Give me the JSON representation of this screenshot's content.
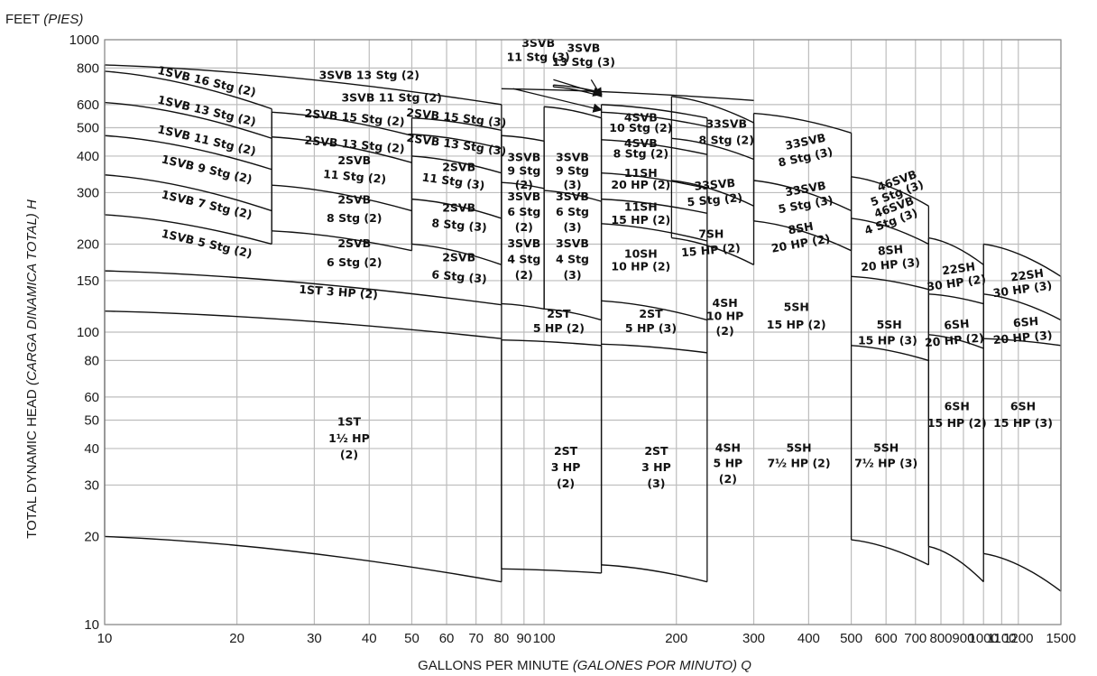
{
  "chart_data": {
    "type": "performance-curve-coverage",
    "y_unit_label": "FEET",
    "y_unit_label_es": "(PIES)",
    "xlabel": "GALLONS PER MINUTE",
    "xlabel_es": "(GALONES POR MINUTO) Q",
    "ylabel": "TOTAL DYNAMIC HEAD",
    "ylabel_es": "(CARGA DINAMICA TOTAL) H",
    "x_scale": "log",
    "y_scale": "log",
    "xlim": [
      10,
      1500
    ],
    "ylim": [
      10,
      1000
    ],
    "x_ticks": [
      10,
      20,
      30,
      40,
      50,
      60,
      70,
      80,
      90,
      100,
      200,
      300,
      400,
      500,
      600,
      700,
      800,
      900,
      1000,
      1100,
      1200,
      1500
    ],
    "x_tick_labels": [
      "10",
      "20",
      "30",
      "40",
      "50",
      "60",
      "70",
      "80",
      "90",
      "100",
      "200",
      "300",
      "400",
      "500",
      "600",
      "700",
      "800",
      "900",
      "1000",
      "1100",
      "1200",
      "1500"
    ],
    "y_ticks": [
      10,
      20,
      30,
      40,
      50,
      60,
      80,
      100,
      150,
      200,
      300,
      400,
      500,
      600,
      800,
      1000
    ],
    "y_tick_labels": [
      "10",
      "20",
      "30",
      "40",
      "50",
      "60",
      "80",
      "100",
      "150",
      "200",
      "300",
      "400",
      "500",
      "600",
      "800",
      "1000"
    ],
    "grid": true,
    "columns": [
      {
        "x": [
          10,
          80
        ],
        "curves": [
          [
            20,
            14
          ],
          [
            118,
            95
          ],
          [
            162,
            124
          ],
          [
            820,
            600
          ]
        ]
      },
      {
        "x": [
          10,
          24
        ],
        "curves": [
          [
            252,
            200
          ],
          [
            345,
            260
          ],
          [
            470,
            360
          ],
          [
            610,
            460
          ],
          [
            780,
            580
          ]
        ]
      },
      {
        "x": [
          24,
          50
        ],
        "curves": [
          [
            222,
            190
          ],
          [
            318,
            260
          ],
          [
            465,
            380
          ],
          [
            565,
            470
          ]
        ]
      },
      {
        "x": [
          50,
          80
        ],
        "curves": [
          [
            200,
            170
          ],
          [
            285,
            245
          ],
          [
            400,
            350
          ],
          [
            475,
            425
          ],
          [
            540,
            490
          ]
        ]
      },
      {
        "x": [
          80,
          100
        ],
        "curves": [
          [
            125,
            120
          ],
          [
            325,
            310
          ],
          [
            470,
            450
          ]
        ]
      },
      {
        "x": [
          100,
          135
        ],
        "curves": [
          [
            120,
            110
          ],
          [
            305,
            280
          ],
          [
            590,
            540
          ]
        ]
      },
      {
        "x": [
          80,
          135
        ],
        "curves": [
          [
            94,
            90
          ],
          [
            15.5,
            15
          ]
        ]
      },
      {
        "x": [
          135,
          235
        ],
        "curves": [
          [
            128,
            110
          ],
          [
            91,
            85
          ],
          [
            16,
            14
          ],
          [
            235,
            205
          ],
          [
            285,
            255
          ],
          [
            350,
            310
          ],
          [
            455,
            405
          ],
          [
            565,
            505
          ],
          [
            600,
            540
          ]
        ]
      },
      {
        "x": [
          195,
          300
        ],
        "curves": [
          [
            210,
            170
          ],
          [
            330,
            270
          ],
          [
            460,
            390
          ],
          [
            640,
            520
          ]
        ]
      },
      {
        "x": [
          300,
          500
        ],
        "curves": [
          [
            240,
            190
          ],
          [
            330,
            260
          ],
          [
            560,
            480
          ]
        ]
      },
      {
        "x": [
          500,
          750
        ],
        "curves": [
          [
            340,
            270
          ],
          [
            245,
            200
          ],
          [
            155,
            140
          ],
          [
            90,
            80
          ],
          [
            19.5,
            16
          ]
        ]
      },
      {
        "x": [
          750,
          1000
        ],
        "curves": [
          [
            210,
            170
          ],
          [
            135,
            125
          ],
          [
            98,
            88
          ],
          [
            18.5,
            14
          ]
        ]
      },
      {
        "x": [
          1000,
          1500
        ],
        "curves": [
          [
            200,
            155
          ],
          [
            135,
            110
          ],
          [
            95,
            90
          ],
          [
            17.5,
            13
          ]
        ]
      },
      {
        "x": [
          105,
          135
        ],
        "curves": [
          [
            700,
            660
          ],
          [
            690,
            640
          ]
        ]
      },
      {
        "x": [
          80,
          300
        ],
        "curves": [
          [
            680,
            620
          ]
        ]
      }
    ],
    "annotations": [
      {
        "text": "1SVB 16 Stg (2)",
        "x": 17,
        "y": 700,
        "rot": 13
      },
      {
        "text": "1SVB 13 Stg (2)",
        "x": 17,
        "y": 555,
        "rot": 13
      },
      {
        "text": "1SVB 11 Stg (2)",
        "x": 17,
        "y": 440,
        "rot": 13
      },
      {
        "text": "1SVB 9 Stg (2)",
        "x": 17,
        "y": 350,
        "rot": 13
      },
      {
        "text": "1SVB 7 Stg (2)",
        "x": 17,
        "y": 265,
        "rot": 13
      },
      {
        "text": "1SVB 5 Stg (2)",
        "x": 17,
        "y": 195,
        "rot": 13
      },
      {
        "text": "3SVB 13 Stg (2)",
        "x": 40,
        "y": 735,
        "rot": 0
      },
      {
        "text": "3SVB 11 Stg (2)",
        "x": 45,
        "y": 615,
        "rot": 0
      },
      {
        "text": "2SVB 15 Stg (2)",
        "x": 37,
        "y": 525,
        "rot": 5
      },
      {
        "text": "2SVB 13 Stg (2)",
        "x": 37,
        "y": 425,
        "rot": 5
      },
      {
        "text": "2SVB",
        "x": 37,
        "y": 375,
        "rot": 0
      },
      {
        "text": "11 Stg (2)",
        "x": 37,
        "y": 330,
        "rot": 5
      },
      {
        "text": "2SVB",
        "x": 37,
        "y": 275,
        "rot": 0
      },
      {
        "text": "8 Stg (2)",
        "x": 37,
        "y": 238,
        "rot": 0
      },
      {
        "text": "2SVB",
        "x": 37,
        "y": 195,
        "rot": 0
      },
      {
        "text": "6 Stg (2)",
        "x": 37,
        "y": 168,
        "rot": 0
      },
      {
        "text": "2SVB 15 Stg (3)",
        "x": 63,
        "y": 525,
        "rot": 6
      },
      {
        "text": "2SVB 13 Stg (3)",
        "x": 63,
        "y": 425,
        "rot": 8
      },
      {
        "text": "2SVB",
        "x": 64,
        "y": 355,
        "rot": 0
      },
      {
        "text": "11 Stg (3)",
        "x": 62,
        "y": 318,
        "rot": 8
      },
      {
        "text": "2SVB",
        "x": 64,
        "y": 258,
        "rot": 0
      },
      {
        "text": "8 Stg (3)",
        "x": 64,
        "y": 225,
        "rot": 5
      },
      {
        "text": "2SVB",
        "x": 64,
        "y": 175,
        "rot": 0
      },
      {
        "text": "6 Stg (3)",
        "x": 64,
        "y": 150,
        "rot": 5
      },
      {
        "text": "1ST 3 HP (2)",
        "x": 34,
        "y": 133,
        "rot": 4
      },
      {
        "text": "1ST",
        "x": 36,
        "y": 48,
        "rot": 0
      },
      {
        "text": "1½ HP",
        "x": 36,
        "y": 42,
        "rot": 0
      },
      {
        "text": "(2)",
        "x": 36,
        "y": 37,
        "rot": 0
      },
      {
        "text": "3SVB",
        "x": 90,
        "y": 385,
        "rot": 0
      },
      {
        "text": "9 Stg",
        "x": 90,
        "y": 345,
        "rot": 0
      },
      {
        "text": "(2)",
        "x": 90,
        "y": 310,
        "rot": 0
      },
      {
        "text": "3SVB",
        "x": 90,
        "y": 282,
        "rot": 0
      },
      {
        "text": "6 Stg",
        "x": 90,
        "y": 250,
        "rot": 0
      },
      {
        "text": "(2)",
        "x": 90,
        "y": 222,
        "rot": 0
      },
      {
        "text": "3SVB",
        "x": 90,
        "y": 195,
        "rot": 0
      },
      {
        "text": "4 Stg",
        "x": 90,
        "y": 172,
        "rot": 0
      },
      {
        "text": "(2)",
        "x": 90,
        "y": 152,
        "rot": 0
      },
      {
        "text": "3SVB",
        "x": 116,
        "y": 385,
        "rot": 0
      },
      {
        "text": "9 Stg",
        "x": 116,
        "y": 345,
        "rot": 0
      },
      {
        "text": "(3)",
        "x": 116,
        "y": 310,
        "rot": 0
      },
      {
        "text": "3SVB",
        "x": 116,
        "y": 282,
        "rot": 0
      },
      {
        "text": "6 Stg",
        "x": 116,
        "y": 250,
        "rot": 0
      },
      {
        "text": "(3)",
        "x": 116,
        "y": 222,
        "rot": 0
      },
      {
        "text": "3SVB",
        "x": 116,
        "y": 195,
        "rot": 0
      },
      {
        "text": "4 Stg",
        "x": 116,
        "y": 172,
        "rot": 0
      },
      {
        "text": "(3)",
        "x": 116,
        "y": 152,
        "rot": 0
      },
      {
        "text": "3SVB",
        "x": 97,
        "y": 945,
        "rot": 0
      },
      {
        "text": "11 Stg (3)",
        "x": 97,
        "y": 845,
        "rot": 0
      },
      {
        "text": "3SVB",
        "x": 123,
        "y": 910,
        "rot": 0
      },
      {
        "text": "13 Stg (3)",
        "x": 123,
        "y": 815,
        "rot": 0
      },
      {
        "text": "2ST",
        "x": 108,
        "y": 112,
        "rot": 0
      },
      {
        "text": "5 HP (2)",
        "x": 108,
        "y": 100,
        "rot": 0
      },
      {
        "text": "2ST",
        "x": 112,
        "y": 38,
        "rot": 0
      },
      {
        "text": "3 HP",
        "x": 112,
        "y": 33.5,
        "rot": 0
      },
      {
        "text": "(2)",
        "x": 112,
        "y": 29.5,
        "rot": 0
      },
      {
        "text": "4SVB",
        "x": 166,
        "y": 525,
        "rot": 0
      },
      {
        "text": "10 Stg (2)",
        "x": 166,
        "y": 485,
        "rot": 0
      },
      {
        "text": "4SVB",
        "x": 166,
        "y": 430,
        "rot": 0
      },
      {
        "text": "8 Stg (2)",
        "x": 166,
        "y": 395,
        "rot": 0
      },
      {
        "text": "11SH",
        "x": 166,
        "y": 340,
        "rot": 0
      },
      {
        "text": "20 HP (2)",
        "x": 166,
        "y": 310,
        "rot": 0
      },
      {
        "text": "11SH",
        "x": 166,
        "y": 260,
        "rot": 0
      },
      {
        "text": "15 HP (2)",
        "x": 166,
        "y": 235,
        "rot": 0
      },
      {
        "text": "10SH",
        "x": 166,
        "y": 180,
        "rot": 0
      },
      {
        "text": "10 HP (2)",
        "x": 166,
        "y": 163,
        "rot": 0
      },
      {
        "text": "2ST",
        "x": 175,
        "y": 112,
        "rot": 0
      },
      {
        "text": "5 HP (3)",
        "x": 175,
        "y": 100,
        "rot": 0
      },
      {
        "text": "2ST",
        "x": 180,
        "y": 38,
        "rot": 0
      },
      {
        "text": "3 HP",
        "x": 180,
        "y": 33.5,
        "rot": 0
      },
      {
        "text": "(3)",
        "x": 180,
        "y": 29.5,
        "rot": 0
      },
      {
        "text": "33SVB",
        "x": 260,
        "y": 500,
        "rot": 0
      },
      {
        "text": "8 Stg (2)",
        "x": 260,
        "y": 440,
        "rot": 0
      },
      {
        "text": "33SVB",
        "x": 245,
        "y": 310,
        "rot": -5
      },
      {
        "text": "5 Stg (2)",
        "x": 245,
        "y": 275,
        "rot": -5
      },
      {
        "text": "7SH",
        "x": 240,
        "y": 210,
        "rot": 0
      },
      {
        "text": "15 HP (2)",
        "x": 240,
        "y": 185,
        "rot": -5
      },
      {
        "text": "4SH",
        "x": 258,
        "y": 122,
        "rot": 0
      },
      {
        "text": "10 HP",
        "x": 258,
        "y": 110,
        "rot": 0
      },
      {
        "text": "(2)",
        "x": 258,
        "y": 98,
        "rot": 0
      },
      {
        "text": "4SH",
        "x": 262,
        "y": 39,
        "rot": 0
      },
      {
        "text": "5 HP",
        "x": 262,
        "y": 34.5,
        "rot": 0
      },
      {
        "text": "(2)",
        "x": 262,
        "y": 30.5,
        "rot": 0
      },
      {
        "text": "33SVB",
        "x": 395,
        "y": 435,
        "rot": -12
      },
      {
        "text": "8 Stg (3)",
        "x": 395,
        "y": 385,
        "rot": -12
      },
      {
        "text": "33SVB",
        "x": 395,
        "y": 300,
        "rot": -10
      },
      {
        "text": "5 Stg (3)",
        "x": 395,
        "y": 265,
        "rot": -10
      },
      {
        "text": "8SH",
        "x": 385,
        "y": 220,
        "rot": -10
      },
      {
        "text": "20 HP (2)",
        "x": 385,
        "y": 195,
        "rot": -10
      },
      {
        "text": "5SH",
        "x": 375,
        "y": 118,
        "rot": 0
      },
      {
        "text": "15 HP (2)",
        "x": 375,
        "y": 103,
        "rot": 0
      },
      {
        "text": "5SH",
        "x": 380,
        "y": 39,
        "rot": 0
      },
      {
        "text": "7½ HP (2)",
        "x": 380,
        "y": 34.5,
        "rot": 0
      },
      {
        "text": "46SVB",
        "x": 640,
        "y": 320,
        "rot": -20
      },
      {
        "text": "5 Stg (3)",
        "x": 640,
        "y": 290,
        "rot": -20
      },
      {
        "text": "46SVB",
        "x": 630,
        "y": 260,
        "rot": -20
      },
      {
        "text": "4 Stg (3)",
        "x": 620,
        "y": 232,
        "rot": -20
      },
      {
        "text": "8SH",
        "x": 615,
        "y": 185,
        "rot": -5
      },
      {
        "text": "20 HP (3)",
        "x": 615,
        "y": 165,
        "rot": -5
      },
      {
        "text": "5SH",
        "x": 610,
        "y": 103,
        "rot": 0
      },
      {
        "text": "15 HP (3)",
        "x": 605,
        "y": 91,
        "rot": 0
      },
      {
        "text": "5SH",
        "x": 600,
        "y": 39,
        "rot": 0
      },
      {
        "text": "7½ HP (3)",
        "x": 600,
        "y": 34.5,
        "rot": 0
      },
      {
        "text": "22SH",
        "x": 880,
        "y": 160,
        "rot": -8
      },
      {
        "text": "30 HP (2)",
        "x": 870,
        "y": 143,
        "rot": -8
      },
      {
        "text": "6SH",
        "x": 870,
        "y": 103,
        "rot": -5
      },
      {
        "text": "20 HP (2)",
        "x": 860,
        "y": 91,
        "rot": -5
      },
      {
        "text": "6SH",
        "x": 870,
        "y": 54,
        "rot": 0
      },
      {
        "text": "15 HP (2)",
        "x": 870,
        "y": 47.5,
        "rot": 0
      },
      {
        "text": "22SH",
        "x": 1260,
        "y": 152,
        "rot": -8
      },
      {
        "text": "30 HP (3)",
        "x": 1230,
        "y": 136,
        "rot": -8
      },
      {
        "text": "6SH",
        "x": 1250,
        "y": 105,
        "rot": -5
      },
      {
        "text": "20 HP (3)",
        "x": 1230,
        "y": 93,
        "rot": -5
      },
      {
        "text": "6SH",
        "x": 1230,
        "y": 54,
        "rot": 0
      },
      {
        "text": "15 HP (3)",
        "x": 1230,
        "y": 47.5,
        "rot": 0
      }
    ],
    "arrows": [
      {
        "from": [
          105,
          730
        ],
        "to": [
          135,
          650
        ]
      },
      {
        "from": [
          128,
          730
        ],
        "to": [
          135,
          640
        ]
      },
      {
        "from": [
          85,
          680
        ],
        "to": [
          135,
          575
        ]
      }
    ]
  }
}
